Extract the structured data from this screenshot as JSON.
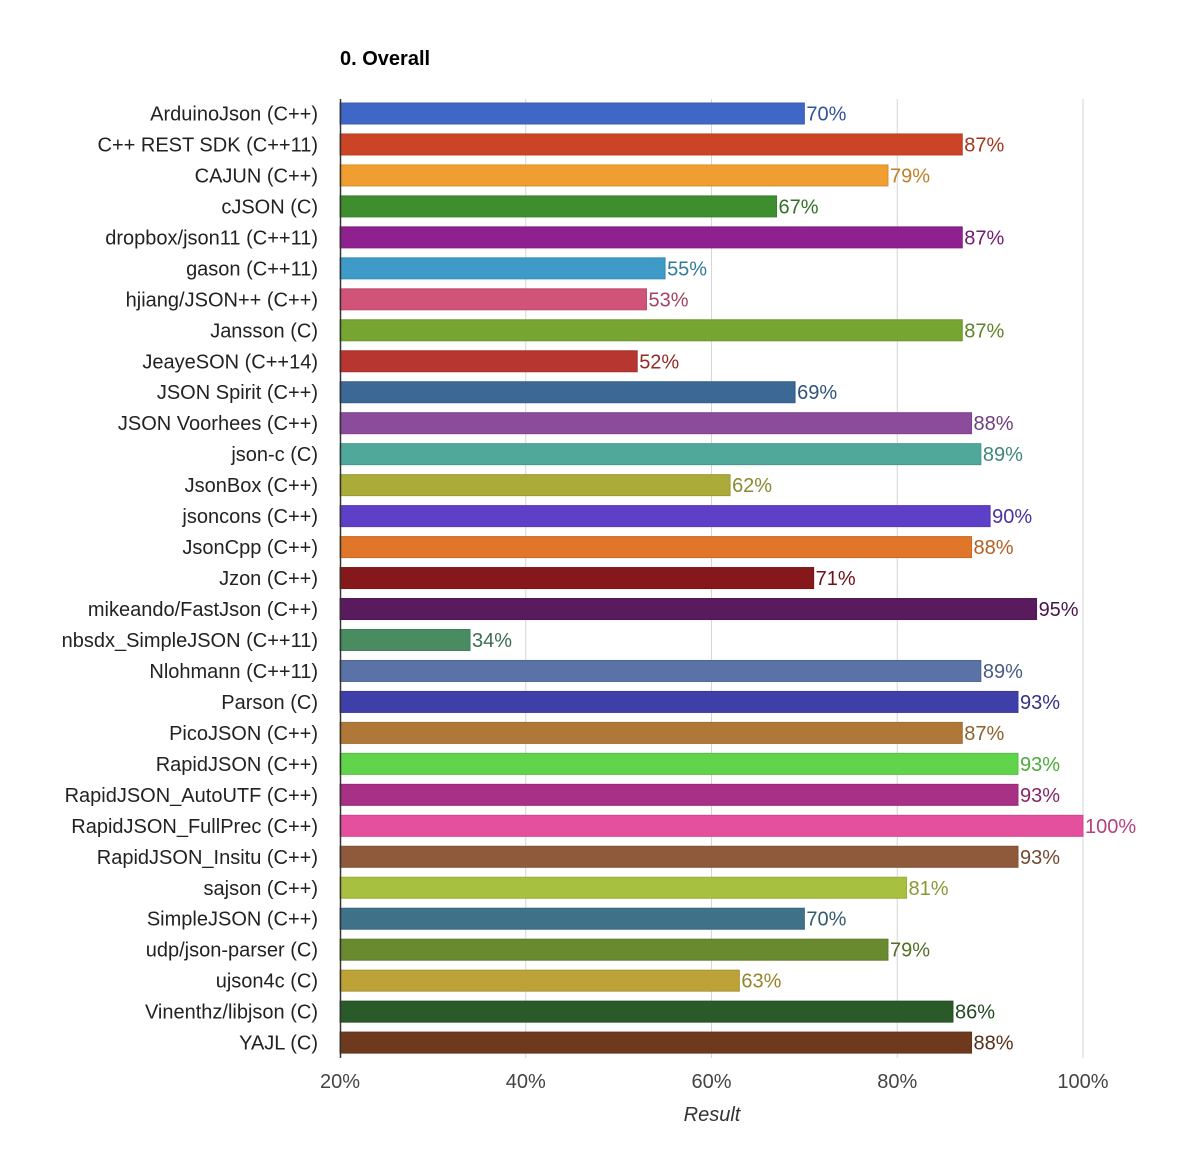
{
  "chart_data": {
    "type": "bar",
    "orientation": "horizontal",
    "title": "0. Overall",
    "xlabel": "Result",
    "ylabel": "",
    "xlim": [
      20,
      100
    ],
    "x_ticks": [
      "20%",
      "40%",
      "60%",
      "80%",
      "100%"
    ],
    "x_tick_values": [
      20,
      40,
      60,
      80,
      100
    ],
    "grid": true,
    "value_suffix": "%",
    "categories": [
      "ArduinoJson (C++)",
      "C++ REST SDK (C++11)",
      "CAJUN (C++)",
      "cJSON (C)",
      "dropbox/json11 (C++11)",
      "gason (C++11)",
      "hjiang/JSON++ (C++)",
      "Jansson (C)",
      "JeayeSON (C++14)",
      "JSON Spirit (C++)",
      "JSON Voorhees (C++)",
      "json-c (C)",
      "JsonBox (C++)",
      "jsoncons (C++)",
      "JsonCpp (C++)",
      "Jzon (C++)",
      "mikeando/FastJson (C++)",
      "nbsdx_SimpleJSON (C++11)",
      "Nlohmann (C++11)",
      "Parson (C)",
      "PicoJSON (C++)",
      "RapidJSON (C++)",
      "RapidJSON_AutoUTF (C++)",
      "RapidJSON_FullPrec (C++)",
      "RapidJSON_Insitu (C++)",
      "sajson (C++)",
      "SimpleJSON (C++)",
      "udp/json-parser (C)",
      "ujson4c (C)",
      "Vinenthz/libjson (C)",
      "YAJL (C)"
    ],
    "values": [
      70,
      87,
      79,
      67,
      87,
      55,
      53,
      87,
      52,
      69,
      88,
      89,
      62,
      90,
      88,
      71,
      95,
      34,
      89,
      93,
      87,
      93,
      93,
      100,
      93,
      81,
      70,
      79,
      63,
      86,
      88
    ],
    "value_labels": [
      "70%",
      "87%",
      "79%",
      "67%",
      "87%",
      "55%",
      "53%",
      "87%",
      "52%",
      "69%",
      "88%",
      "89%",
      "62%",
      "90%",
      "88%",
      "71%",
      "95%",
      "34%",
      "89%",
      "93%",
      "87%",
      "93%",
      "93%",
      "100%",
      "93%",
      "81%",
      "70%",
      "79%",
      "63%",
      "86%",
      "88%"
    ],
    "colors": [
      "#3f67c6",
      "#cc4426",
      "#f09e32",
      "#3e8e2f",
      "#8e2090",
      "#3e9ac6",
      "#d15478",
      "#76a532",
      "#b83630",
      "#3c6896",
      "#8b4c9b",
      "#4fa89a",
      "#abab3a",
      "#5e3fc8",
      "#e0762a",
      "#86181b",
      "#5a1a5e",
      "#4a8c62",
      "#5a72a6",
      "#3f3fa9",
      "#b07838",
      "#60d44a",
      "#a83085",
      "#e5509e",
      "#8f5a3c",
      "#a8c040",
      "#3f7288",
      "#6a8a30",
      "#bda238",
      "#2a5a2a",
      "#6e3a1e"
    ]
  }
}
